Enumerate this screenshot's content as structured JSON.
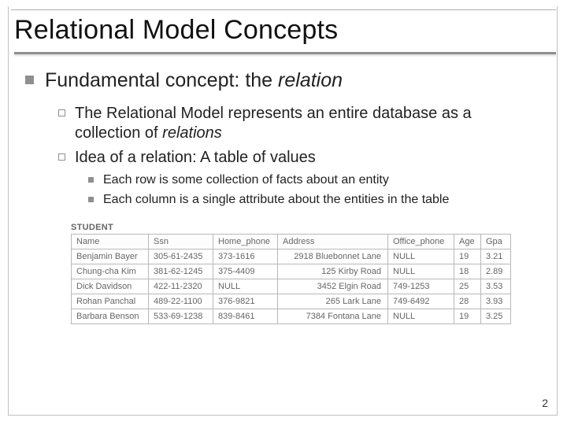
{
  "title": "Relational Model Concepts",
  "bullets": {
    "lvl1": {
      "prefix": "Fundamental concept: the ",
      "italic": "relation"
    },
    "lvl2": [
      {
        "prefix": "The Relational Model represents an entire database as a collection of ",
        "italic": "relations"
      },
      {
        "prefix": "Idea of a relation: A table of values",
        "italic": ""
      }
    ],
    "lvl3": [
      "Each row is some collection of facts about an entity",
      "Each column is a single attribute about the entities in the table"
    ]
  },
  "table": {
    "label": "STUDENT",
    "columns": [
      "Name",
      "Ssn",
      "Home_phone",
      "Address",
      "Office_phone",
      "Age",
      "Gpa"
    ],
    "rows": [
      [
        "Benjamin Bayer",
        "305-61-2435",
        "373-1616",
        "2918 Bluebonnet Lane",
        "NULL",
        "19",
        "3.21"
      ],
      [
        "Chung-cha Kim",
        "381-62-1245",
        "375-4409",
        "125 Kirby Road",
        "NULL",
        "18",
        "2.89"
      ],
      [
        "Dick Davidson",
        "422-11-2320",
        "NULL",
        "3452 Elgin Road",
        "749-1253",
        "25",
        "3.53"
      ],
      [
        "Rohan Panchal",
        "489-22-1100",
        "376-9821",
        "265 Lark Lane",
        "749-6492",
        "28",
        "3.93"
      ],
      [
        "Barbara Benson",
        "533-69-1238",
        "839-8461",
        "7384 Fontana Lane",
        "NULL",
        "19",
        "3.25"
      ]
    ]
  },
  "page_number": "2",
  "colors": {
    "bullet_gray": "#8f8f8f",
    "border_gray": "#c0c0c0",
    "text": "#222222",
    "table_text": "#666666"
  }
}
